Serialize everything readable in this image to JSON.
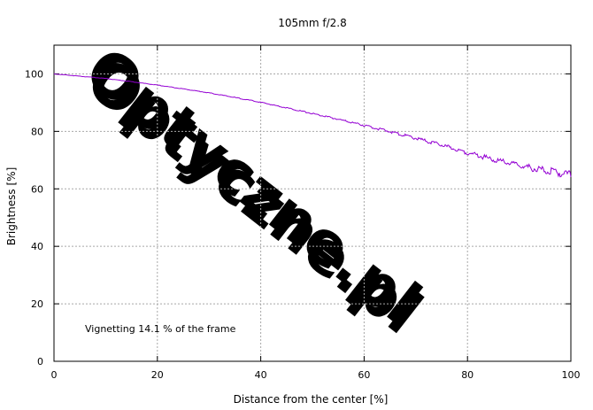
{
  "chart_data": {
    "type": "line",
    "title": "105mm f/2.8",
    "xlabel": "Distance from the center [%]",
    "ylabel": "Brightness [%]",
    "xlim": [
      0,
      100
    ],
    "ylim": [
      0,
      110
    ],
    "xticks": [
      0,
      20,
      40,
      60,
      80,
      100
    ],
    "yticks": [
      0,
      20,
      40,
      60,
      80,
      100
    ],
    "grid": true,
    "series": [
      {
        "color": "#9400d3",
        "x": [
          0,
          5,
          10,
          15,
          20,
          25,
          30,
          35,
          40,
          45,
          50,
          55,
          60,
          65,
          70,
          75,
          80,
          85,
          90,
          95,
          100
        ],
        "y": [
          100,
          99.2,
          98.4,
          97.3,
          96.1,
          94.8,
          93.4,
          91.8,
          90.1,
          88.2,
          86.2,
          84.2,
          82.1,
          79.9,
          77.6,
          75.2,
          72.6,
          70.2,
          68.1,
          66.4,
          64.9
        ]
      }
    ],
    "annotation": "Vignetting 14.1 % of the frame",
    "watermark": "Optyczne.pl"
  }
}
